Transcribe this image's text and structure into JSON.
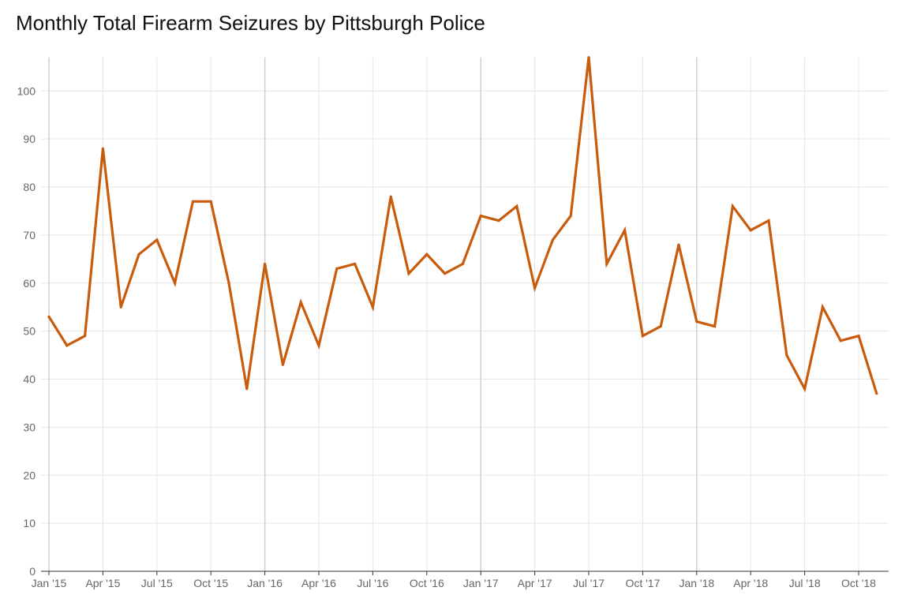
{
  "chart_data": {
    "type": "line",
    "title": "Monthly Total Firearm Seizures by Pittsburgh Police",
    "xlabel": "",
    "ylabel": "",
    "ylim": [
      0,
      107
    ],
    "yticks": [
      0,
      10,
      20,
      30,
      40,
      50,
      60,
      70,
      80,
      90,
      100
    ],
    "x_tick_labels": [
      "Jan '15",
      "Apr '15",
      "Jul '15",
      "Oct '15",
      "Jan '16",
      "Apr '16",
      "Jul '16",
      "Oct '16",
      "Jan '17",
      "Apr '17",
      "Jul '17",
      "Oct '17",
      "Jan '18",
      "Apr '18",
      "Jul '18",
      "Oct '18"
    ],
    "grid": true,
    "color": "#C95B0C",
    "x": [
      "2015-01",
      "2015-02",
      "2015-03",
      "2015-04",
      "2015-05",
      "2015-06",
      "2015-07",
      "2015-08",
      "2015-09",
      "2015-10",
      "2015-11",
      "2015-12",
      "2016-01",
      "2016-02",
      "2016-03",
      "2016-04",
      "2016-05",
      "2016-06",
      "2016-07",
      "2016-08",
      "2016-09",
      "2016-10",
      "2016-11",
      "2016-12",
      "2017-01",
      "2017-02",
      "2017-03",
      "2017-04",
      "2017-05",
      "2017-06",
      "2017-07",
      "2017-08",
      "2017-09",
      "2017-10",
      "2017-11",
      "2017-12",
      "2018-01",
      "2018-02",
      "2018-03",
      "2018-04",
      "2018-05",
      "2018-06",
      "2018-07",
      "2018-08",
      "2018-09",
      "2018-10",
      "2018-11"
    ],
    "series": [
      {
        "values": [
          53,
          47,
          49,
          88,
          55,
          66,
          69,
          60,
          77,
          77,
          60,
          38,
          64,
          43,
          56,
          47,
          63,
          64,
          55,
          78,
          62,
          66,
          62,
          64,
          74,
          73,
          76,
          59,
          69,
          74,
          107,
          64,
          71,
          49,
          51,
          68,
          52,
          51,
          76,
          71,
          73,
          45,
          38,
          55,
          48,
          49,
          37
        ]
      }
    ]
  }
}
